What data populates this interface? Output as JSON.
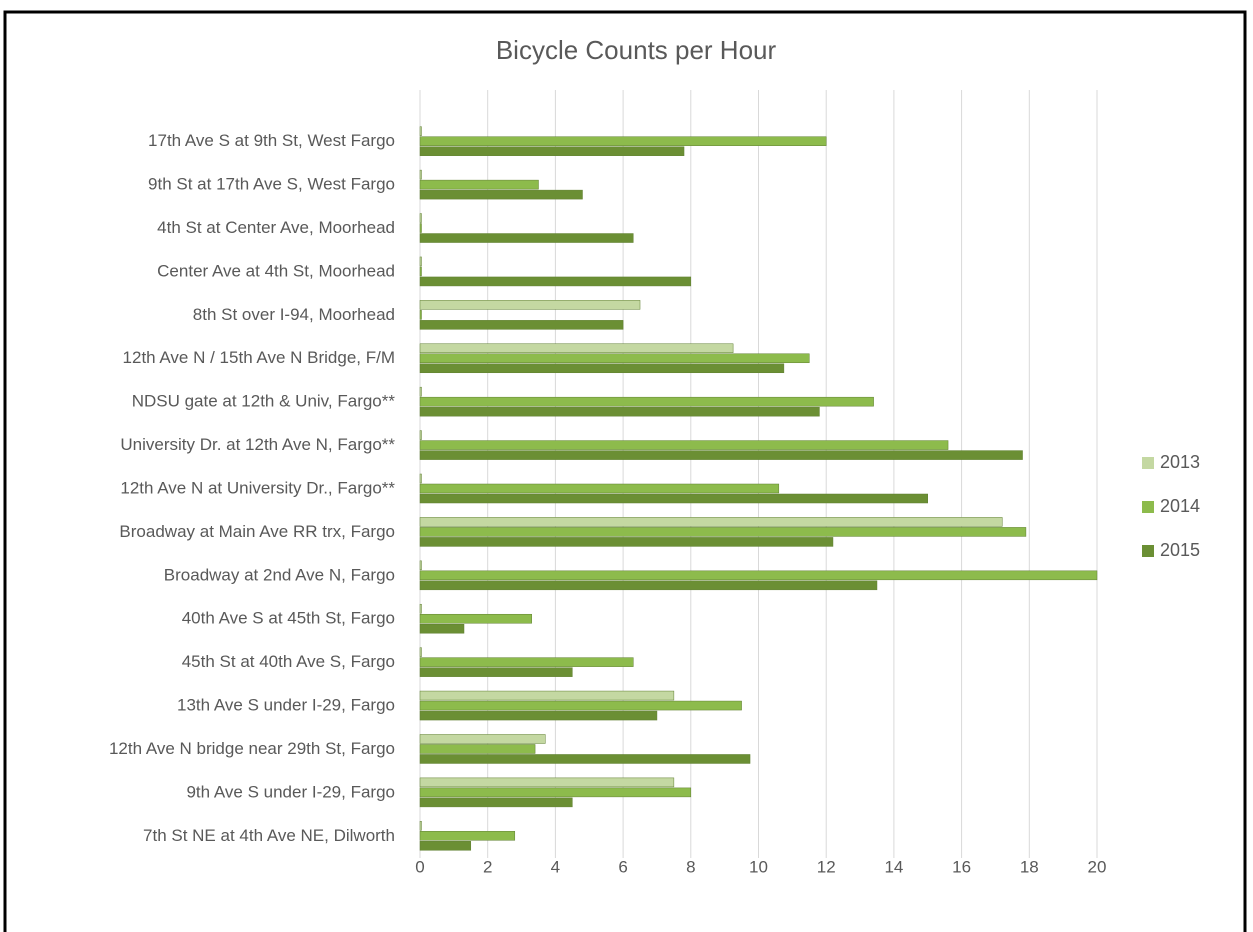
{
  "chart_data": {
    "type": "hbar",
    "title": "Bicycle Counts per Hour",
    "categories": [
      "17th Ave S at 9th St, West Fargo",
      "9th St at 17th Ave S, West Fargo",
      "4th St at Center Ave, Moorhead",
      "Center Ave at 4th St, Moorhead",
      "8th St over I-94, Moorhead",
      "12th Ave N / 15th Ave N Bridge, F/M",
      "NDSU gate at 12th & Univ, Fargo**",
      "University Dr. at 12th Ave N, Fargo**",
      "12th Ave N at University Dr., Fargo**",
      "Broadway at Main Ave RR trx, Fargo",
      "Broadway at 2nd Ave N, Fargo",
      "40th Ave S at 45th St, Fargo",
      "45th St at 40th Ave S, Fargo",
      "13th Ave S under I-29, Fargo",
      "12th Ave N bridge near 29th St, Fargo",
      "9th Ave S under I-29, Fargo",
      "7th  St NE at 4th Ave NE, Dilworth"
    ],
    "series": [
      {
        "name": "2013",
        "color": "#c4d8a2",
        "values": [
          0,
          0,
          0,
          0,
          6.5,
          9.25,
          0,
          0,
          0,
          17.2,
          0,
          0,
          0,
          7.5,
          3.7,
          7.5,
          0
        ]
      },
      {
        "name": "2014",
        "color": "#8dbb4c",
        "values": [
          12.0,
          3.5,
          0,
          0,
          0,
          11.5,
          13.4,
          15.6,
          10.6,
          17.9,
          20,
          3.3,
          6.3,
          9.5,
          3.4,
          8.0,
          2.8
        ]
      },
      {
        "name": "2015",
        "color": "#6b8f34",
        "values": [
          7.8,
          4.8,
          6.3,
          8.0,
          6.0,
          10.75,
          11.8,
          17.8,
          15.0,
          12.2,
          13.5,
          1.3,
          4.5,
          7.0,
          9.75,
          4.5,
          1.5
        ]
      }
    ],
    "xlim": [
      0,
      20
    ],
    "xticks": [
      0,
      2,
      4,
      6,
      8,
      10,
      12,
      14,
      16,
      18,
      20
    ],
    "grid": true,
    "legend": "right"
  }
}
